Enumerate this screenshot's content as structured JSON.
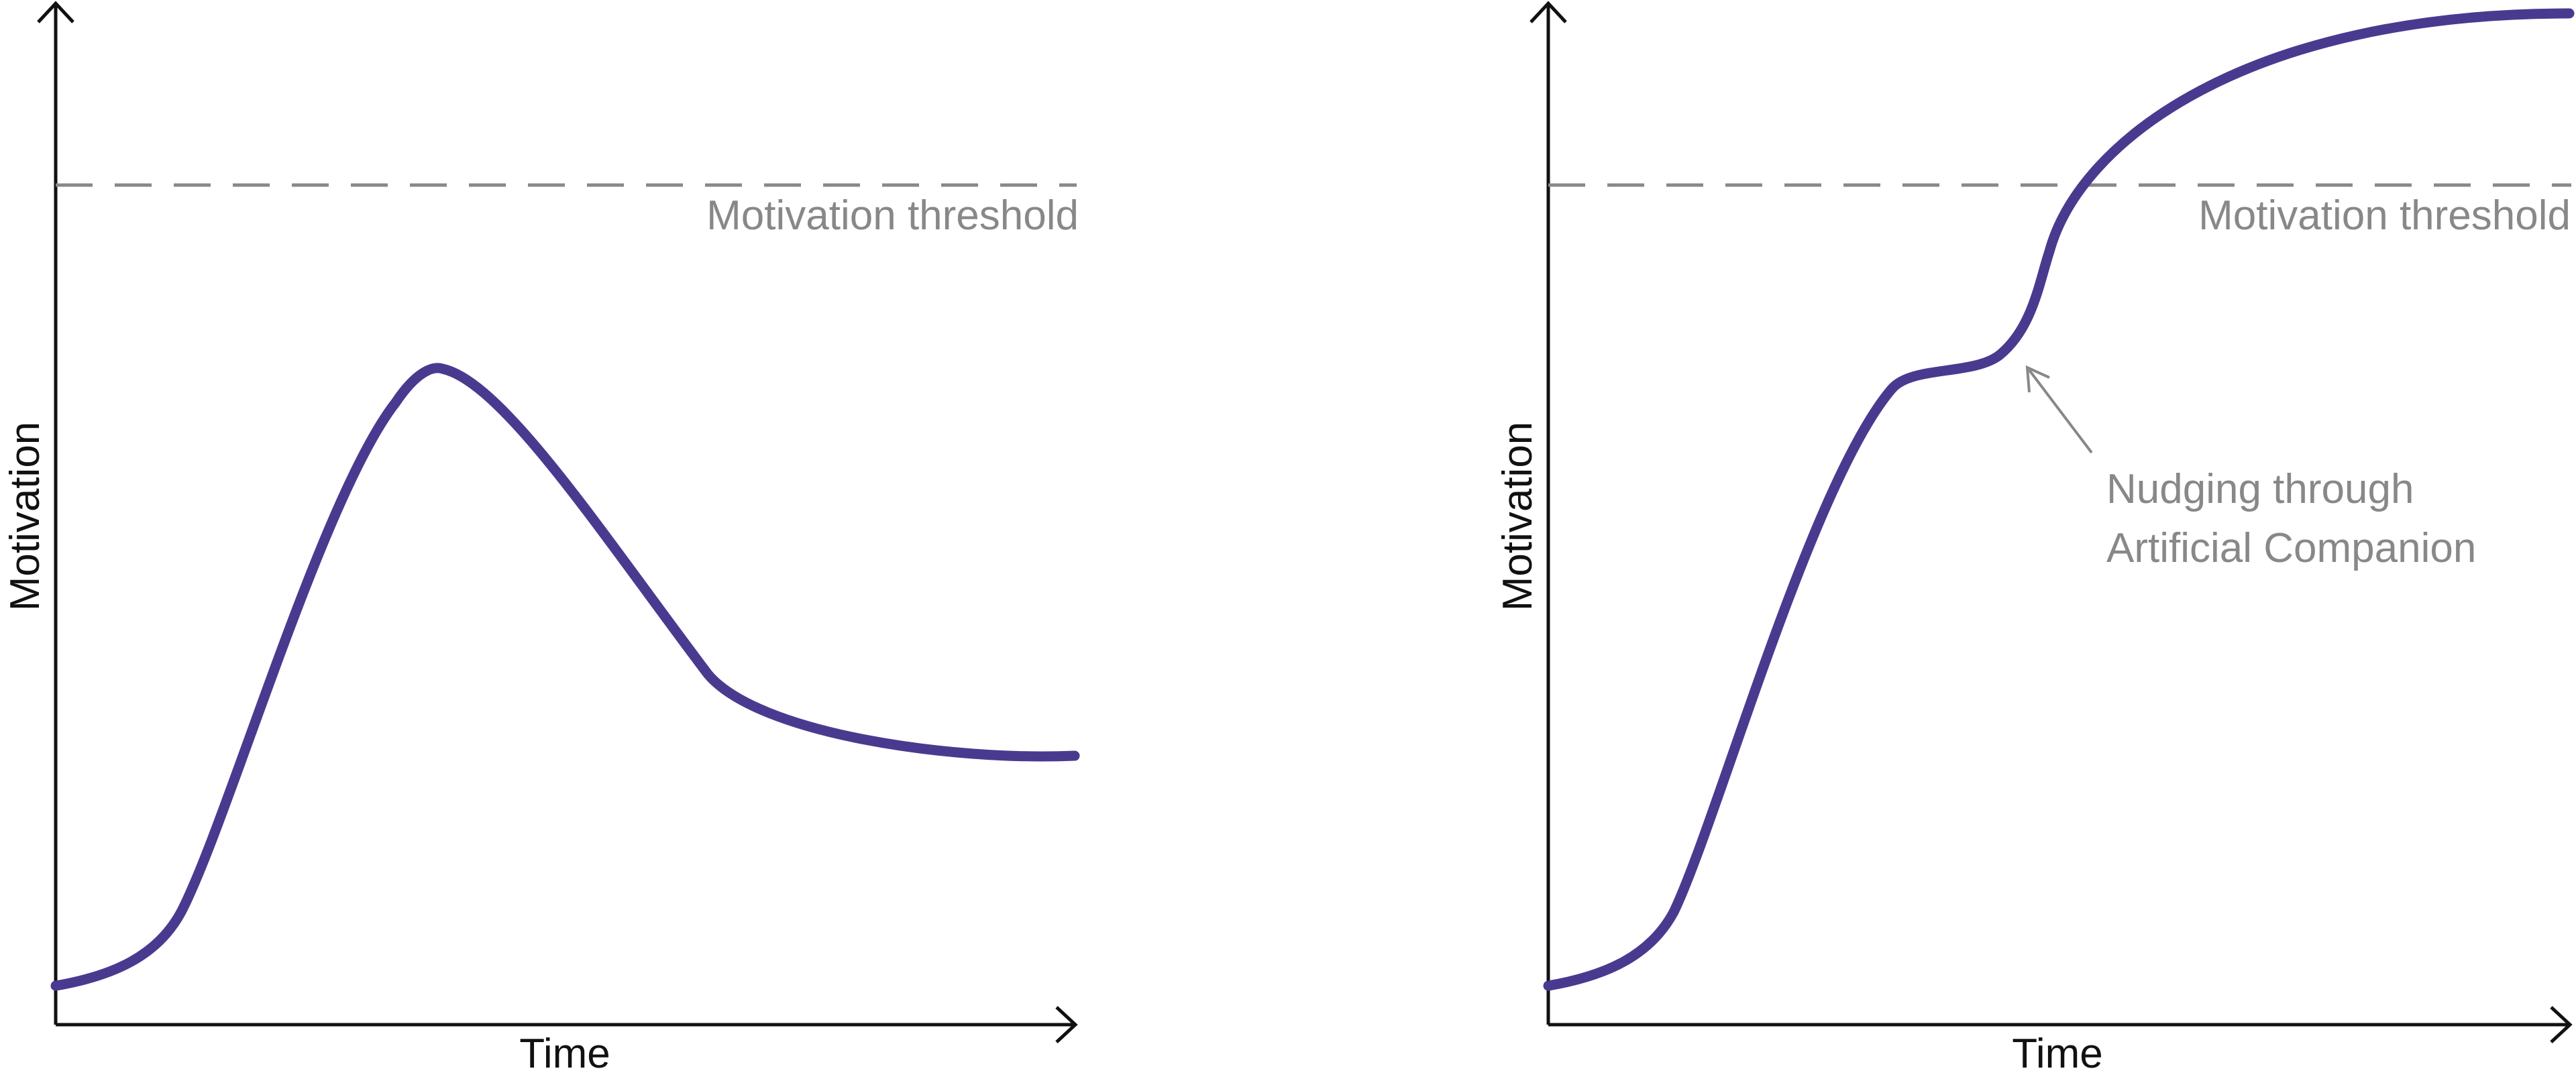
{
  "panels": [
    {
      "y_axis_label": "Motivation",
      "x_axis_label": "Time",
      "threshold_label": "Motivation threshold",
      "curve_color": "#4a3a8f",
      "threshold_color": "#888888"
    },
    {
      "y_axis_label": "Motivation",
      "x_axis_label": "Time",
      "threshold_label": "Motivation threshold",
      "annotation_line1": "Nudging through",
      "annotation_line2": "Artificial Companion",
      "curve_color": "#4a3a8f",
      "threshold_color": "#888888"
    }
  ]
}
